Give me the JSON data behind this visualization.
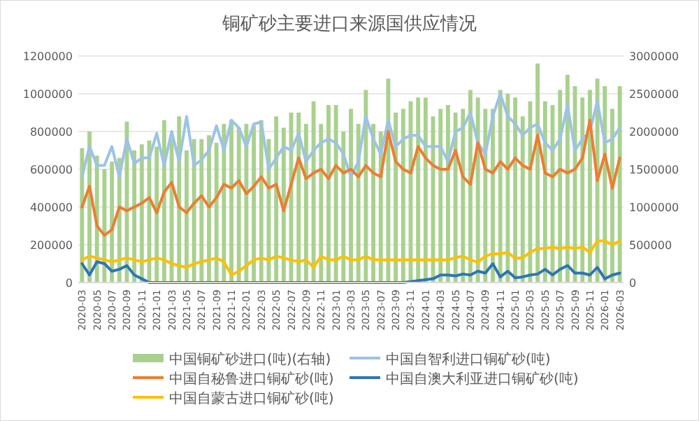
{
  "chart_data": {
    "type": "bar",
    "title": "铜矿砂主要进口来源国供应情况",
    "categories": [
      "2020-03",
      null,
      "2020-05",
      null,
      "2020-07",
      null,
      "2020-09",
      null,
      "2020-11",
      null,
      "2021-01",
      null,
      "2021-03",
      null,
      "2021-05",
      null,
      "2021-07",
      null,
      "2021-09",
      null,
      "2021-11",
      null,
      "2022-01",
      null,
      "2022-03",
      null,
      "2022-05",
      null,
      "2022-07",
      null,
      "2022-09",
      null,
      "2022-11",
      null,
      "2023-01",
      null,
      "2023-03",
      null,
      "2023-05",
      null,
      "2023-07",
      null,
      "2023-09",
      null,
      "2023-11",
      null,
      "2024-01",
      null,
      "2024-03",
      null,
      "2024-05",
      null,
      "2024-07",
      null,
      "2024-09",
      null,
      "2024-11",
      null,
      "2025-01",
      null,
      "2025-03",
      null,
      "2025-05",
      null,
      "2025-07",
      null,
      "2025-09",
      null,
      "2025-11",
      null,
      "2026-01",
      null,
      "2026-03"
    ],
    "series": [
      {
        "name": "中国铜矿砂进口(吨)(右轴)",
        "axis": "y2",
        "color": "#a9d18e",
        "values": [
          1780000,
          2000000,
          1680000,
          1500000,
          1600000,
          1650000,
          2130000,
          1750000,
          1830000,
          1880000,
          1800000,
          2150000,
          1900000,
          2200000,
          1750000,
          1900000,
          1900000,
          1950000,
          1850000,
          2100000,
          2150000,
          2050000,
          2100000,
          2080000,
          2150000,
          1900000,
          2200000,
          2050000,
          2250000,
          2250000,
          2100000,
          2400000,
          2100000,
          2350000,
          2350000,
          2000000,
          2300000,
          2100000,
          2550000,
          2100000,
          2000000,
          2700000,
          2250000,
          2300000,
          2400000,
          2450000,
          2450000,
          2200000,
          2300000,
          2350000,
          2250000,
          2300000,
          2550000,
          2450000,
          2300000,
          2300000,
          2550000,
          2500000,
          2450000,
          2200000,
          2400000,
          2900000,
          2400000,
          2350000,
          2550000,
          2750000,
          2600000,
          2450000,
          2550000,
          2700000,
          2600000,
          2300000,
          2600000
        ]
      },
      {
        "name": "中国自智利进口铜矿砂(吨)",
        "type": "line",
        "color": "#9dc3e6",
        "values": [
          560000,
          720000,
          620000,
          620000,
          720000,
          560000,
          760000,
          630000,
          660000,
          660000,
          790000,
          620000,
          800000,
          640000,
          880000,
          620000,
          650000,
          700000,
          830000,
          700000,
          860000,
          820000,
          720000,
          840000,
          850000,
          600000,
          660000,
          720000,
          700000,
          790000,
          640000,
          700000,
          740000,
          760000,
          740000,
          680000,
          560000,
          640000,
          880000,
          760000,
          680000,
          860000,
          720000,
          760000,
          780000,
          780000,
          720000,
          720000,
          720000,
          640000,
          800000,
          820000,
          900000,
          740000,
          680000,
          880000,
          1000000,
          880000,
          840000,
          780000,
          820000,
          840000,
          740000,
          700000,
          760000,
          940000,
          700000,
          760000,
          800000,
          960000,
          740000,
          760000,
          820000
        ]
      },
      {
        "name": "中国自秘鲁进口铜矿砂(吨)",
        "type": "line",
        "color": "#ed7d31",
        "values": [
          400000,
          510000,
          300000,
          250000,
          280000,
          400000,
          380000,
          400000,
          420000,
          450000,
          370000,
          480000,
          530000,
          400000,
          370000,
          420000,
          460000,
          400000,
          450000,
          520000,
          500000,
          540000,
          470000,
          510000,
          560000,
          500000,
          520000,
          380000,
          520000,
          660000,
          550000,
          580000,
          600000,
          550000,
          620000,
          580000,
          600000,
          560000,
          620000,
          580000,
          560000,
          800000,
          640000,
          600000,
          580000,
          720000,
          660000,
          620000,
          600000,
          600000,
          700000,
          560000,
          520000,
          740000,
          600000,
          580000,
          640000,
          600000,
          660000,
          620000,
          600000,
          780000,
          580000,
          560000,
          600000,
          580000,
          600000,
          660000,
          860000,
          540000,
          680000,
          500000,
          660000
        ]
      },
      {
        "name": "中国自澳大利亚进口铜矿砂(吨)",
        "type": "line",
        "color": "#2e75b6",
        "values": [
          100000,
          40000,
          110000,
          100000,
          60000,
          70000,
          90000,
          40000,
          20000,
          0,
          0,
          0,
          0,
          0,
          0,
          0,
          0,
          0,
          0,
          0,
          0,
          0,
          0,
          0,
          0,
          0,
          0,
          0,
          0,
          0,
          0,
          0,
          0,
          0,
          0,
          0,
          0,
          0,
          0,
          0,
          0,
          0,
          0,
          0,
          5000,
          10000,
          15000,
          20000,
          40000,
          40000,
          35000,
          45000,
          40000,
          60000,
          50000,
          100000,
          30000,
          60000,
          25000,
          30000,
          40000,
          45000,
          70000,
          40000,
          70000,
          90000,
          50000,
          50000,
          40000,
          80000,
          20000,
          40000,
          50000
        ]
      },
      {
        "name": "中国自蒙古进口铜矿砂(吨)",
        "type": "line",
        "color": "#ffc000",
        "values": [
          120000,
          140000,
          130000,
          120000,
          110000,
          120000,
          130000,
          120000,
          110000,
          120000,
          130000,
          120000,
          100000,
          90000,
          80000,
          100000,
          110000,
          120000,
          130000,
          110000,
          40000,
          60000,
          90000,
          120000,
          130000,
          120000,
          140000,
          130000,
          120000,
          110000,
          120000,
          80000,
          140000,
          120000,
          120000,
          140000,
          120000,
          120000,
          140000,
          120000,
          120000,
          120000,
          120000,
          120000,
          120000,
          120000,
          120000,
          120000,
          120000,
          120000,
          132000,
          140000,
          120000,
          108000,
          140000,
          152000,
          152000,
          160000,
          128000,
          132000,
          160000,
          180000,
          180000,
          188000,
          180000,
          188000,
          180000,
          188000,
          160000,
          220000,
          220000,
          200000,
          220000
        ]
      }
    ],
    "ylim": [
      0,
      1200000
    ],
    "yticks": [
      0,
      200000,
      400000,
      600000,
      800000,
      1000000,
      1200000
    ],
    "y2lim": [
      0,
      3000000
    ],
    "y2ticks": [
      0,
      500000,
      1000000,
      1500000,
      2000000,
      2500000,
      3000000
    ],
    "grid": "y",
    "legend": "bottom",
    "marker": "none"
  }
}
